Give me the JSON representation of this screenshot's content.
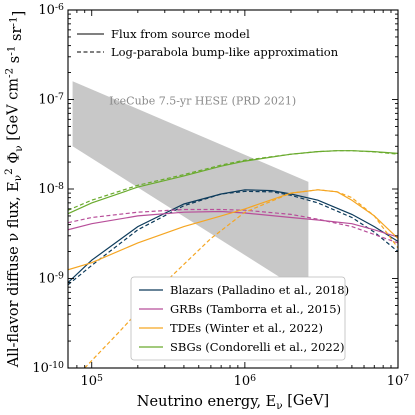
{
  "chart_data": {
    "type": "line",
    "xlabel": "Neutrino energy, E_ν [GeV]",
    "ylabel": "All-flavor diffuse ν flux, E_ν^2 Φ_ν [GeV cm^-2 s^-1 sr^-1]",
    "xscale": "log",
    "yscale": "log",
    "xlim": [
      70000,
      10000000
    ],
    "ylim": [
      1e-10,
      1e-06
    ],
    "x_ticks": [
      {
        "value": 100000,
        "label": "10^5"
      },
      {
        "value": 1000000,
        "label": "10^6"
      },
      {
        "value": 10000000,
        "label": "10^7"
      }
    ],
    "y_ticks": [
      {
        "value": 1e-10,
        "label": "10^-10"
      },
      {
        "value": 1e-09,
        "label": "10^-9"
      },
      {
        "value": 1e-08,
        "label": "10^-8"
      },
      {
        "value": 1e-07,
        "label": "10^-7"
      },
      {
        "value": 1e-06,
        "label": "10^-6"
      }
    ],
    "grid": false,
    "style_legend": {
      "placement": "top-left",
      "entries": [
        {
          "label": "Flux from source model",
          "dash": "solid"
        },
        {
          "label": "Log-parabola bump-like approximation",
          "dash": "dashed"
        }
      ]
    },
    "band": {
      "label": "IceCube 7.5-yr HESE (PRD 2021)",
      "color": "#c8c8c8",
      "upper": [
        [
          75000,
          1.6e-07
        ],
        [
          2600000,
          1.2e-08
        ]
      ],
      "lower": [
        [
          75000,
          3e-08
        ],
        [
          2600000,
          6.5e-10
        ]
      ]
    },
    "series_legend_placement": "bottom-center",
    "series": [
      {
        "name": "Blazars (Palladino et al., 2018)",
        "color": "#0d3b5b",
        "solid": [
          [
            70000,
            9e-10
          ],
          [
            100000,
            1.6e-09
          ],
          [
            200000,
            3.8e-09
          ],
          [
            400000,
            6.8e-09
          ],
          [
            700000,
            8.8e-09
          ],
          [
            1000000,
            9.8e-09
          ],
          [
            1500000,
            9.6e-09
          ],
          [
            2000000,
            8.8e-09
          ],
          [
            3000000,
            7.5e-09
          ],
          [
            5000000,
            5.2e-09
          ],
          [
            7000000,
            3.8e-09
          ],
          [
            10000000,
            2.6e-09
          ]
        ],
        "dashed": [
          [
            70000,
            8.5e-10
          ],
          [
            100000,
            1.4e-09
          ],
          [
            200000,
            3.5e-09
          ],
          [
            400000,
            6.5e-09
          ],
          [
            700000,
            8.8e-09
          ],
          [
            1000000,
            9.4e-09
          ],
          [
            1500000,
            9.3e-09
          ],
          [
            2000000,
            8.5e-09
          ],
          [
            3000000,
            7e-09
          ],
          [
            5000000,
            4.8e-09
          ],
          [
            7000000,
            3.3e-09
          ],
          [
            10000000,
            2e-09
          ]
        ]
      },
      {
        "name": "GRBs (Tamborra et al., 2015)",
        "color": "#b84f9a",
        "solid": [
          [
            70000,
            3.5e-09
          ],
          [
            100000,
            4.1e-09
          ],
          [
            200000,
            5e-09
          ],
          [
            400000,
            5.5e-09
          ],
          [
            700000,
            5.6e-09
          ],
          [
            1000000,
            5.4e-09
          ],
          [
            2000000,
            4.8e-09
          ],
          [
            3000000,
            4.5e-09
          ],
          [
            5000000,
            4.1e-09
          ],
          [
            7000000,
            3.5e-09
          ],
          [
            10000000,
            2.9e-09
          ]
        ],
        "dashed": [
          [
            70000,
            4.2e-09
          ],
          [
            100000,
            4.8e-09
          ],
          [
            200000,
            5.5e-09
          ],
          [
            400000,
            5.9e-09
          ],
          [
            700000,
            5.9e-09
          ],
          [
            1000000,
            5.8e-09
          ],
          [
            2000000,
            5.2e-09
          ],
          [
            3000000,
            4.6e-09
          ],
          [
            5000000,
            3.8e-09
          ],
          [
            7000000,
            3.1e-09
          ],
          [
            10000000,
            2.5e-09
          ]
        ]
      },
      {
        "name": "TDEs (Winter et al., 2022)",
        "color": "#f5a623",
        "solid": [
          [
            70000,
            1.25e-09
          ],
          [
            100000,
            1.5e-09
          ],
          [
            200000,
            2.5e-09
          ],
          [
            400000,
            3.8e-09
          ],
          [
            700000,
            5e-09
          ],
          [
            1000000,
            6e-09
          ],
          [
            2000000,
            9e-09
          ],
          [
            3000000,
            9.8e-09
          ],
          [
            4000000,
            9.3e-09
          ],
          [
            5000000,
            7.5e-09
          ],
          [
            7000000,
            5e-09
          ],
          [
            10000000,
            2.8e-09
          ]
        ],
        "dashed": [
          [
            90000,
            1e-10
          ],
          [
            150000,
            2.5e-10
          ],
          [
            300000,
            9e-10
          ],
          [
            600000,
            2.8e-09
          ],
          [
            1000000,
            5.5e-09
          ],
          [
            2000000,
            9e-09
          ],
          [
            3000000,
            9.8e-09
          ],
          [
            4000000,
            9.3e-09
          ],
          [
            5000000,
            8e-09
          ],
          [
            7000000,
            5e-09
          ],
          [
            10000000,
            2.2e-09
          ]
        ]
      },
      {
        "name": "SBGs (Condorelli et al., 2022)",
        "color": "#6aab2e",
        "solid": [
          [
            70000,
            5.3e-09
          ],
          [
            100000,
            7e-09
          ],
          [
            200000,
            1.05e-08
          ],
          [
            400000,
            1.4e-08
          ],
          [
            700000,
            1.8e-08
          ],
          [
            1000000,
            2.05e-08
          ],
          [
            2000000,
            2.45e-08
          ],
          [
            3000000,
            2.62e-08
          ],
          [
            4000000,
            2.68e-08
          ],
          [
            5000000,
            2.68e-08
          ],
          [
            7000000,
            2.62e-08
          ],
          [
            10000000,
            2.5e-08
          ]
        ],
        "dashed": [
          [
            70000,
            5.8e-09
          ],
          [
            100000,
            7.5e-09
          ],
          [
            200000,
            1.1e-08
          ],
          [
            400000,
            1.45e-08
          ],
          [
            700000,
            1.85e-08
          ],
          [
            1000000,
            2.1e-08
          ],
          [
            2000000,
            2.45e-08
          ],
          [
            3000000,
            2.62e-08
          ],
          [
            4000000,
            2.68e-08
          ],
          [
            5000000,
            2.68e-08
          ],
          [
            7000000,
            2.6e-08
          ],
          [
            10000000,
            2.45e-08
          ]
        ]
      }
    ]
  }
}
